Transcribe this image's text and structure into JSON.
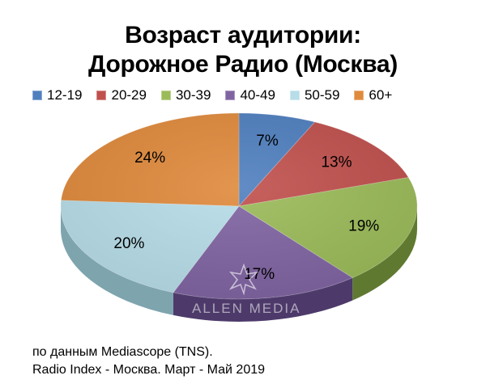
{
  "title_line1": "Возраст аудитории:",
  "title_line2": "Дорожное Радио (Москва)",
  "source_line1": "по данным Mediascope (TNS).",
  "source_line2": "Radio Index - Москва. Март - Май 2019",
  "watermark": "ALLEN MEDIA",
  "chart_data": {
    "type": "pie",
    "title": "Возраст аудитории: Дорожное Радио (Москва)",
    "legend_position": "top",
    "categories": [
      "12-19",
      "20-29",
      "30-39",
      "40-49",
      "50-59",
      "60+"
    ],
    "values": [
      7,
      13,
      19,
      17,
      20,
      24
    ],
    "labels": [
      "7%",
      "13%",
      "19%",
      "17%",
      "20%",
      "24%"
    ],
    "colors": [
      "#4f7fbf",
      "#c0504d",
      "#9bbb59",
      "#8064a2",
      "#b7dde8",
      "#e08a3c"
    ],
    "side_colors": [
      "#2f4f80",
      "#7f2f2d",
      "#5f7a30",
      "#4d3a6a",
      "#7ea4ae",
      "#9a5a20"
    ]
  }
}
